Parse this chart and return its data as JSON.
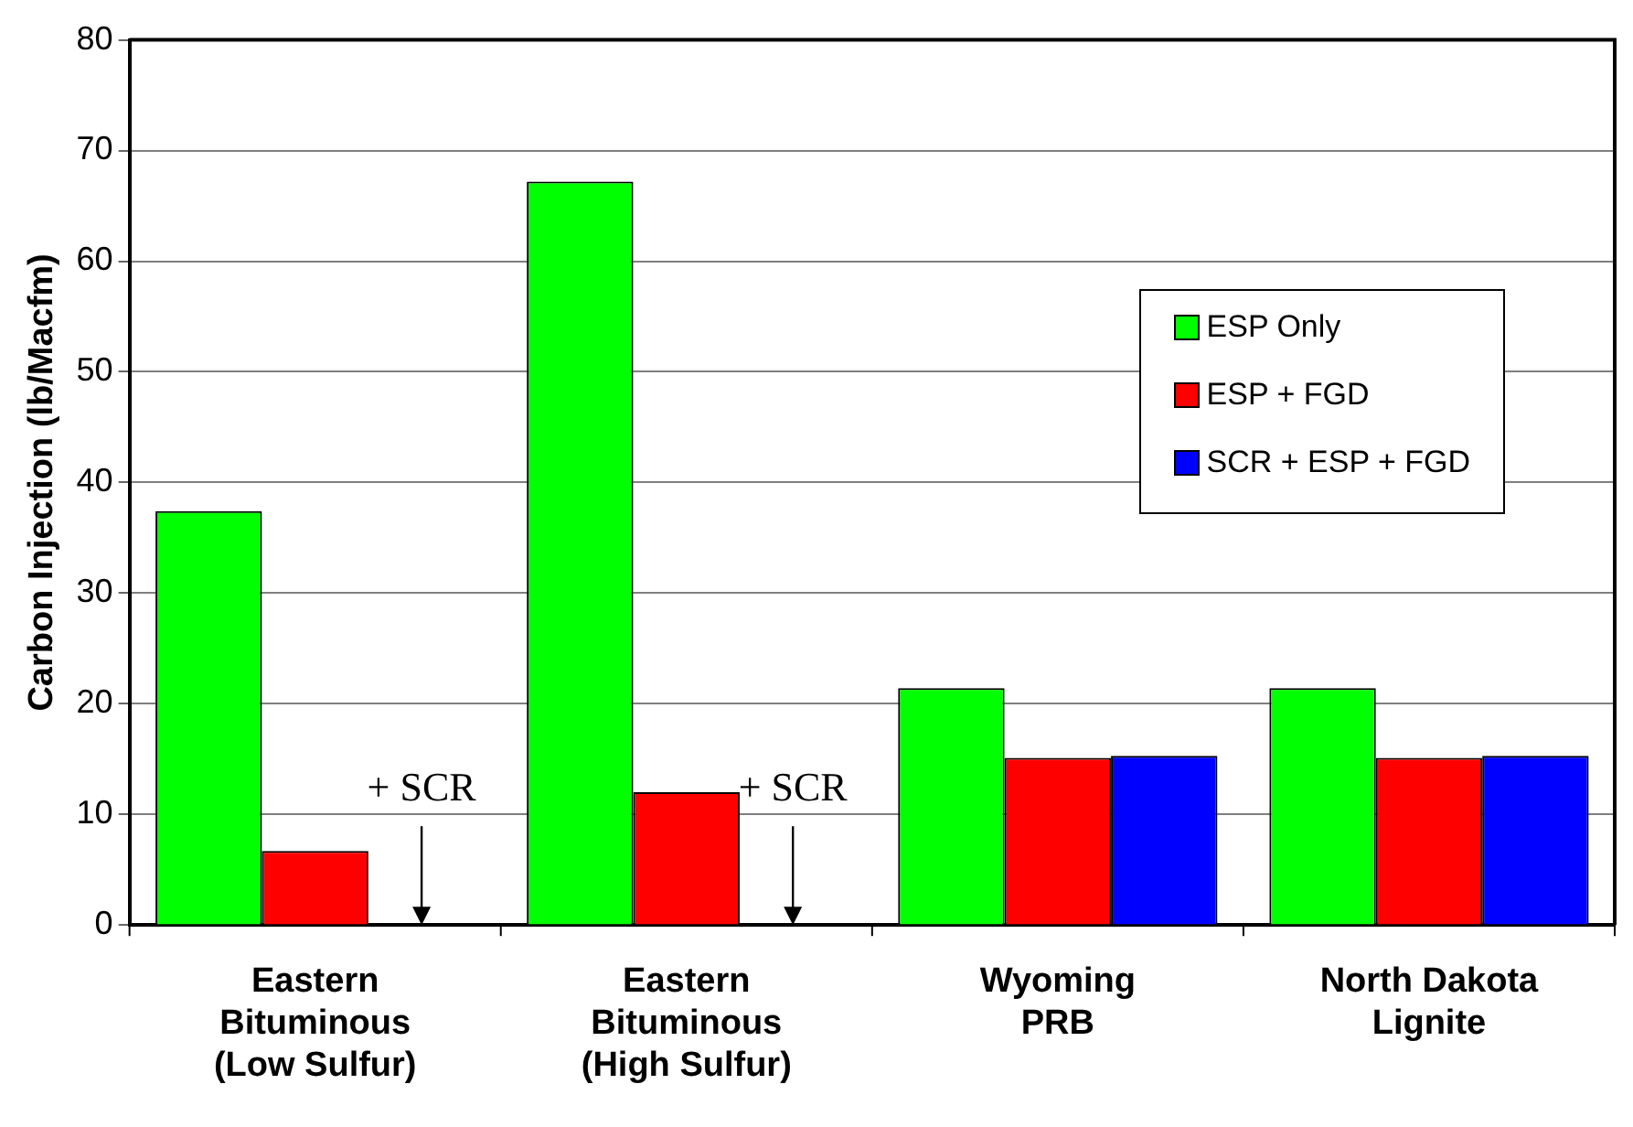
{
  "chart_data": {
    "type": "bar",
    "ylabel": "Carbon Injection (lb/Macfm)",
    "categories": [
      "Eastern\nBituminous\n(Low Sulfur)",
      "Eastern\nBituminous\n(High Sulfur)",
      "Wyoming\nPRB",
      "North Dakota\nLignite"
    ],
    "series": [
      {
        "name": "ESP Only",
        "color": "#00ff00",
        "values": [
          37.4,
          67.2,
          21.4,
          21.4
        ]
      },
      {
        "name": "ESP + FGD",
        "color": "#ff0000",
        "values": [
          6.7,
          12.0,
          15.1,
          15.1
        ]
      },
      {
        "name": "SCR + ESP + FGD",
        "color": "#0000ff",
        "values": [
          null,
          null,
          15.3,
          15.3
        ]
      }
    ],
    "ylim": [
      0,
      80
    ],
    "yticks": [
      0,
      10,
      20,
      30,
      40,
      50,
      60,
      70,
      80
    ],
    "grid": "y",
    "legend": "right",
    "annotations": [
      "+ SCR",
      "+ SCR"
    ]
  }
}
